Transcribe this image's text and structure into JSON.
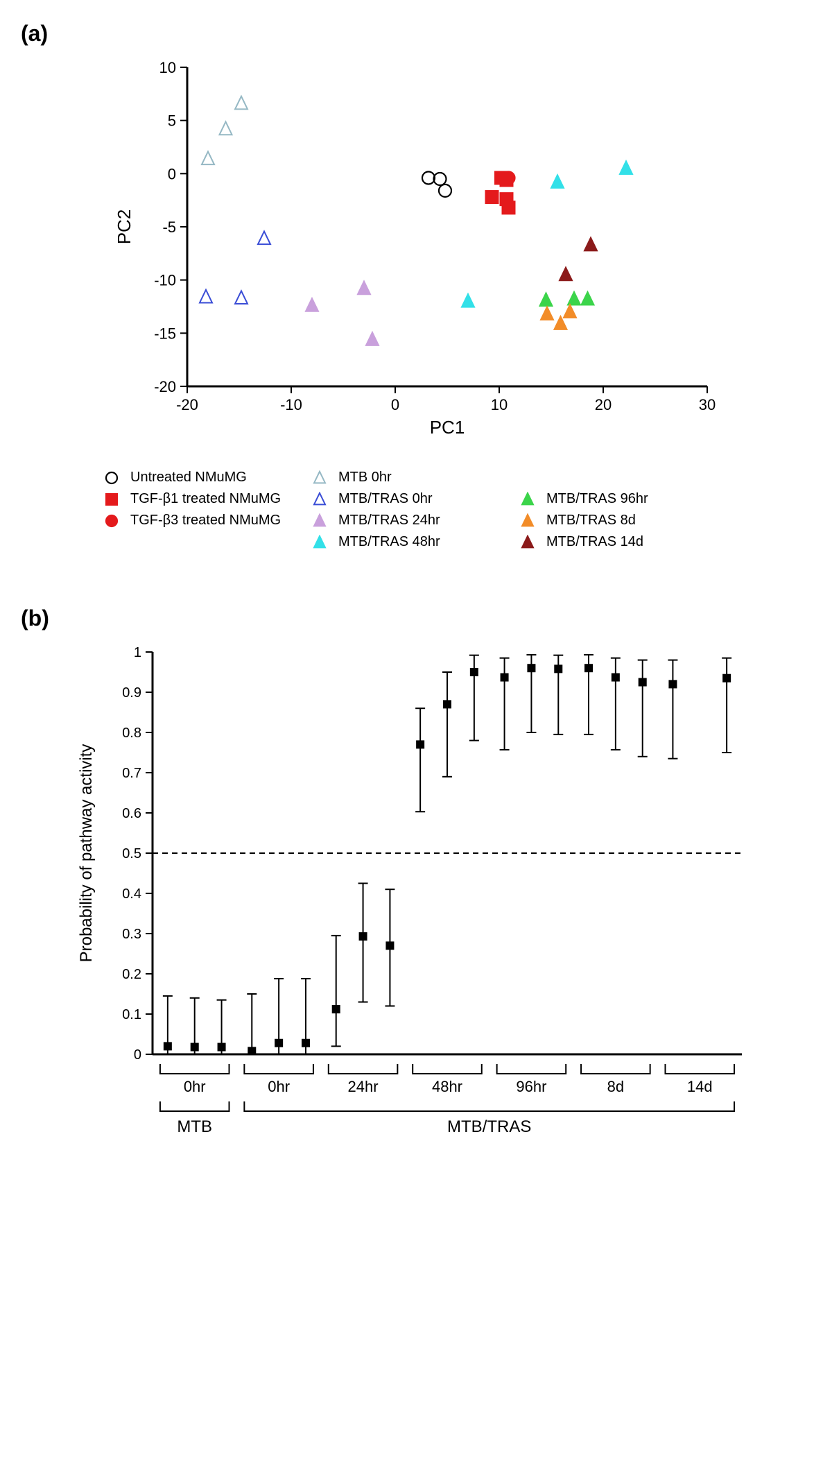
{
  "panelA": {
    "label": "(a)",
    "xlabel": "PC1",
    "ylabel": "PC2",
    "xlim": [
      -20,
      30
    ],
    "ylim": [
      -20,
      10
    ],
    "xticks": [
      -20,
      -10,
      0,
      10,
      20,
      30
    ],
    "yticks": [
      -20,
      -15,
      -10,
      -5,
      0,
      5,
      10
    ],
    "axis_color": "#000000",
    "tick_fontsize": 22,
    "label_fontsize": 26,
    "series": [
      {
        "name": "Untreated NMuMG",
        "marker": "circle",
        "fill": "none",
        "stroke": "#000000",
        "points": [
          [
            3.2,
            -0.4
          ],
          [
            4.3,
            -0.5
          ],
          [
            4.8,
            -1.6
          ]
        ]
      },
      {
        "name": "TGF-β1 treated NMuMG",
        "marker": "square",
        "fill": "#e41a1c",
        "stroke": "#e41a1c",
        "points": [
          [
            10.2,
            -0.4
          ],
          [
            10.7,
            -0.6
          ],
          [
            9.3,
            -2.2
          ],
          [
            10.7,
            -2.4
          ],
          [
            10.9,
            -3.2
          ]
        ]
      },
      {
        "name": "TGF-β3 treated NMuMG",
        "marker": "circle",
        "fill": "#e41a1c",
        "stroke": "#e41a1c",
        "points": [
          [
            10.9,
            -0.4
          ]
        ]
      },
      {
        "name": "MTB 0hr",
        "marker": "triangle",
        "fill": "none",
        "stroke": "#95b8c4",
        "points": [
          [
            -18.0,
            1.4
          ],
          [
            -16.3,
            4.2
          ],
          [
            -14.8,
            6.6
          ]
        ]
      },
      {
        "name": "MTB/TRAS 0hr",
        "marker": "triangle",
        "fill": "none",
        "stroke": "#3a4dd6",
        "points": [
          [
            -18.2,
            -11.6
          ],
          [
            -14.8,
            -11.7
          ],
          [
            -12.6,
            -6.1
          ]
        ]
      },
      {
        "name": "MTB/TRAS 24hr",
        "marker": "triangle",
        "fill": "#c9a0dc",
        "stroke": "#c9a0dc",
        "points": [
          [
            -8.0,
            -12.4
          ],
          [
            -3.0,
            -10.8
          ],
          [
            -2.2,
            -15.6
          ]
        ]
      },
      {
        "name": "MTB/TRAS 48hr",
        "marker": "triangle",
        "fill": "#32e0e8",
        "stroke": "#32e0e8",
        "points": [
          [
            7.0,
            -12.0
          ],
          [
            15.6,
            -0.8
          ],
          [
            22.2,
            0.5
          ]
        ]
      },
      {
        "name": "MTB/TRAS 96hr",
        "marker": "triangle",
        "fill": "#3bd44a",
        "stroke": "#3bd44a",
        "points": [
          [
            14.5,
            -11.9
          ],
          [
            17.2,
            -11.8
          ],
          [
            18.5,
            -11.8
          ]
        ]
      },
      {
        "name": "MTB/TRAS 8d",
        "marker": "triangle",
        "fill": "#f28c28",
        "stroke": "#f28c28",
        "points": [
          [
            14.6,
            -13.2
          ],
          [
            15.9,
            -14.1
          ],
          [
            16.8,
            -13.0
          ]
        ]
      },
      {
        "name": "MTB/TRAS 14d",
        "marker": "triangle",
        "fill": "#8b1a1a",
        "stroke": "#8b1a1a",
        "points": [
          [
            16.4,
            -9.5
          ],
          [
            18.8,
            -6.7
          ]
        ]
      }
    ],
    "legend_layout": [
      [
        "Untreated NMuMG",
        "MTB 0hr",
        ""
      ],
      [
        "TGF-β1 treated NMuMG",
        "MTB/TRAS 0hr",
        "MTB/TRAS 96hr"
      ],
      [
        "TGF-β3 treated NMuMG",
        "MTB/TRAS 24hr",
        "MTB/TRAS 8d"
      ],
      [
        "",
        "MTB/TRAS 48hr",
        "MTB/TRAS 14d"
      ]
    ]
  },
  "panelB": {
    "label": "(b)",
    "ylabel": "Probability of pathway activity",
    "ylim": [
      0,
      1
    ],
    "yticks": [
      0,
      0.1,
      0.2,
      0.3,
      0.4,
      0.5,
      0.6,
      0.7,
      0.8,
      0.9,
      1
    ],
    "dashed_y": 0.5,
    "axis_color": "#000000",
    "tick_fontsize": 20,
    "label_fontsize": 24,
    "marker": {
      "shape": "square",
      "fill": "#000000",
      "size": 12
    },
    "groups": [
      {
        "label": "0hr",
        "cond": "MTB",
        "points": [
          {
            "y": 0.02,
            "lo": 0.0,
            "hi": 0.145
          },
          {
            "y": 0.018,
            "lo": 0.0,
            "hi": 0.14
          },
          {
            "y": 0.018,
            "lo": 0.0,
            "hi": 0.135
          }
        ]
      },
      {
        "label": "0hr",
        "cond": "MTB/TRAS",
        "points": [
          {
            "y": 0.008,
            "lo": 0.0,
            "hi": 0.15
          },
          {
            "y": 0.028,
            "lo": 0.0,
            "hi": 0.188
          },
          {
            "y": 0.028,
            "lo": 0.0,
            "hi": 0.188
          }
        ]
      },
      {
        "label": "24hr",
        "cond": "MTB/TRAS",
        "points": [
          {
            "y": 0.112,
            "lo": 0.02,
            "hi": 0.295
          },
          {
            "y": 0.293,
            "lo": 0.13,
            "hi": 0.425
          },
          {
            "y": 0.27,
            "lo": 0.12,
            "hi": 0.41
          }
        ]
      },
      {
        "label": "48hr",
        "cond": "MTB/TRAS",
        "points": [
          {
            "y": 0.77,
            "lo": 0.603,
            "hi": 0.86
          },
          {
            "y": 0.87,
            "lo": 0.69,
            "hi": 0.95
          },
          {
            "y": 0.95,
            "lo": 0.78,
            "hi": 0.992
          }
        ]
      },
      {
        "label": "96hr",
        "cond": "MTB/TRAS",
        "points": [
          {
            "y": 0.937,
            "lo": 0.757,
            "hi": 0.985
          },
          {
            "y": 0.96,
            "lo": 0.8,
            "hi": 0.993
          },
          {
            "y": 0.958,
            "lo": 0.795,
            "hi": 0.992
          }
        ]
      },
      {
        "label": "8d",
        "cond": "MTB/TRAS",
        "points": [
          {
            "y": 0.96,
            "lo": 0.795,
            "hi": 0.993
          },
          {
            "y": 0.937,
            "lo": 0.757,
            "hi": 0.985
          },
          {
            "y": 0.925,
            "lo": 0.74,
            "hi": 0.98
          }
        ]
      },
      {
        "label": "14d",
        "cond": "MTB/TRAS",
        "points": [
          {
            "y": 0.92,
            "lo": 0.735,
            "hi": 0.98
          },
          {
            "y": 0.935,
            "lo": 0.75,
            "hi": 0.985
          }
        ]
      }
    ],
    "cond_groups": [
      {
        "label": "MTB",
        "span": [
          0,
          0
        ]
      },
      {
        "label": "MTB/TRAS",
        "span": [
          1,
          6
        ]
      }
    ]
  }
}
